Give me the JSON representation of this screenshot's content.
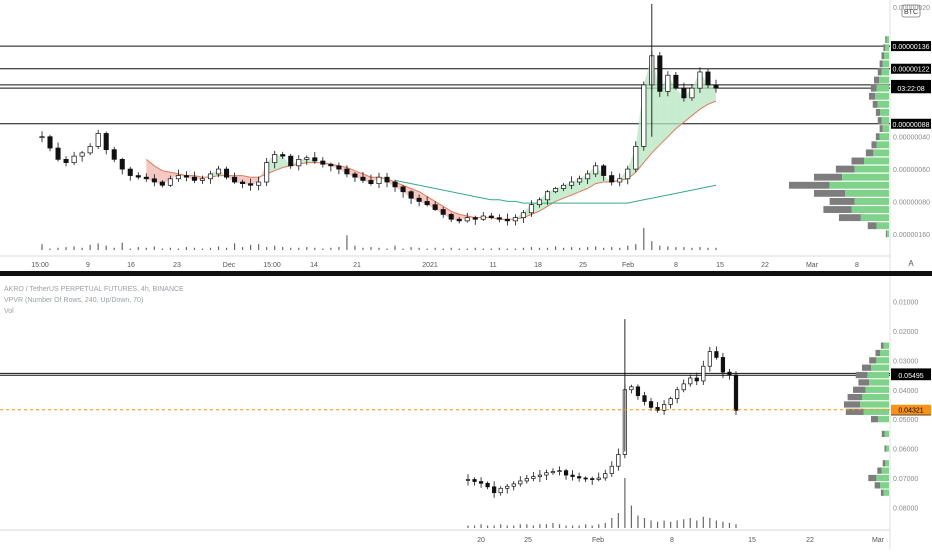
{
  "top_pane": {
    "currency_badge": "BTC",
    "price_levels": [
      "0.00000136",
      "0.00000122",
      "0.00000112",
      "0.00000110",
      "0.00000088"
    ],
    "countdown": "03:22:08",
    "y_ticks": [
      "0.00000160",
      "0.00000080",
      "0.00000060",
      "0.00000040",
      "0.00000020"
    ],
    "x_ticks": [
      "15:00",
      "9",
      "16",
      "23",
      "Dec",
      "15:00",
      "14",
      "21",
      "2021",
      "11",
      "18",
      "25",
      "Feb",
      "8",
      "15",
      "22",
      "Mar",
      "8"
    ],
    "scale_button": "A"
  },
  "bottom_pane": {
    "legend": {
      "symbol": "AKRO / TetherUS PERPETUAL FUTURES, 4h, BINANCE",
      "indicator": "VPVR (Number Of Rows, 240, Up/Down, 70)",
      "volume": "Vol"
    },
    "price_levels": [
      "0.05556",
      "0.05495"
    ],
    "countdown": "03:22:08",
    "last_price": "0.04321",
    "y_ticks": [
      "0.08000",
      "0.07000",
      "0.06000",
      "0.05000",
      "0.04000",
      "0.03000",
      "0.02000",
      "0.01000"
    ],
    "x_ticks": [
      "20",
      "25",
      "Feb",
      "8",
      "15",
      "22",
      "Mar"
    ]
  },
  "colors": {
    "up_volume": "#7fd28a",
    "down_volume": "#7d7d7d",
    "ma_fast": "#e07b5a",
    "ma_slow": "#3aa889",
    "fill_green": "#b6e6c0",
    "fill_red": "#f2b6b0",
    "last_price": "#f7931a",
    "candle": "#111111"
  },
  "chart_data": [
    {
      "type": "candlestick",
      "title": "",
      "currency": "BTC",
      "x_labels": [
        "15:00",
        "9",
        "16",
        "23",
        "Dec",
        "15:00",
        "14",
        "21",
        "2021",
        "11",
        "18",
        "25",
        "Feb",
        "8",
        "15",
        "22",
        "Mar",
        "8"
      ],
      "ylim": [
        1e-07,
        1.62e-06
      ],
      "y_ticks": [
        2e-07,
        4e-07,
        6e-07,
        8e-07,
        1.6e-06
      ],
      "close": [
        8e-07,
        7.3e-07,
        6.6e-07,
        6.4e-07,
        6.8e-07,
        7e-07,
        7.4e-07,
        8.2e-07,
        7.2e-07,
        6.6e-07,
        6e-07,
        5.6e-07,
        5.5e-07,
        5.4e-07,
        5.2e-07,
        5e-07,
        5.4e-07,
        5.6e-07,
        5.5e-07,
        5.3e-07,
        5.4e-07,
        5.7e-07,
        6e-07,
        5.5e-07,
        5.2e-07,
        5.1e-07,
        5e-07,
        5.2e-07,
        6.4e-07,
        6.9e-07,
        6.8e-07,
        6.2e-07,
        6.6e-07,
        6.7e-07,
        6.5e-07,
        6.3e-07,
        6.2e-07,
        6e-07,
        5.7e-07,
        5.5e-07,
        5.3e-07,
        5.1e-07,
        5.5e-07,
        5.2e-07,
        4.9e-07,
        4.6e-07,
        4.2e-07,
        4e-07,
        3.8e-07,
        3.5e-07,
        3.2e-07,
        2.9e-07,
        2.8e-07,
        3e-07,
        2.9e-07,
        3.1e-07,
        3e-07,
        2.9e-07,
        2.8e-07,
        3e-07,
        3.3e-07,
        3.8e-07,
        4.1e-07,
        4.6e-07,
        4.8e-07,
        5e-07,
        5.2e-07,
        5.4e-07,
        5.7e-07,
        6.2e-07,
        5.6e-07,
        5.2e-07,
        5.4e-07,
        6e-07,
        7.4e-07,
        1.12e-06,
        1.3e-06,
        1.08e-06,
        1.18e-06,
        1.1e-06,
        1.04e-06,
        1.1e-06,
        1.2e-06,
        1.12e-06,
        1.1e-06
      ],
      "ma_fast": [
        null,
        null,
        null,
        null,
        null,
        null,
        null,
        null,
        null,
        null,
        null,
        null,
        null,
        6.6e-07,
        6.2e-07,
        5.9e-07,
        5.8e-07,
        5.7e-07,
        5.6e-07,
        5.6e-07,
        5.5e-07,
        5.5e-07,
        5.6e-07,
        5.6e-07,
        5.6e-07,
        5.6e-07,
        5.5e-07,
        5.5e-07,
        5.7e-07,
        5.9e-07,
        6.1e-07,
        6.2e-07,
        6.3e-07,
        6.4e-07,
        6.4e-07,
        6.4e-07,
        6.3e-07,
        6.2e-07,
        6.1e-07,
        5.9e-07,
        5.7e-07,
        5.5e-07,
        5.5e-07,
        5.4e-07,
        5.2e-07,
        5e-07,
        4.8e-07,
        4.6e-07,
        4.3e-07,
        4e-07,
        3.7e-07,
        3.4e-07,
        3.2e-07,
        3.1e-07,
        3e-07,
        3e-07,
        3e-07,
        2.9e-07,
        2.9e-07,
        2.9e-07,
        3e-07,
        3.2e-07,
        3.4e-07,
        3.7e-07,
        4e-07,
        4.2e-07,
        4.4e-07,
        4.6e-07,
        4.8e-07,
        5.1e-07,
        5.2e-07,
        5.2e-07,
        5.3e-07,
        5.4e-07,
        5.8e-07,
        6.4e-07,
        7e-07,
        7.5e-07,
        8e-07,
        8.5e-07,
        8.9e-07,
        9.3e-07,
        9.7e-07,
        1e-06,
        1.02e-06
      ],
      "ma_slow": [
        null,
        null,
        null,
        null,
        null,
        null,
        null,
        null,
        null,
        null,
        null,
        null,
        null,
        null,
        null,
        null,
        null,
        null,
        null,
        null,
        null,
        null,
        null,
        null,
        null,
        null,
        null,
        null,
        null,
        null,
        null,
        null,
        null,
        null,
        null,
        null,
        null,
        null,
        null,
        null,
        null,
        null,
        null,
        null,
        5.3e-07,
        5.2e-07,
        5.1e-07,
        5e-07,
        4.9e-07,
        4.8e-07,
        4.7e-07,
        4.6e-07,
        4.5e-07,
        4.4e-07,
        4.3e-07,
        4.2e-07,
        4.1e-07,
        4.1e-07,
        4e-07,
        4e-07,
        3.9e-07,
        3.9e-07,
        3.9e-07,
        3.9e-07,
        3.9e-07,
        3.9e-07,
        3.9e-07,
        3.9e-07,
        3.9e-07,
        3.9e-07,
        3.9e-07,
        3.9e-07,
        3.9e-07,
        3.9e-07,
        4e-07,
        4.1e-07,
        4.2e-07,
        4.3e-07,
        4.4e-07,
        4.5e-07,
        4.6e-07,
        4.7e-07,
        4.8e-07,
        4.9e-07,
        5e-07
      ],
      "volume": [
        8,
        2,
        3,
        4,
        5,
        3,
        7,
        9,
        6,
        3,
        10,
        2,
        4,
        3,
        5,
        2,
        3,
        2,
        4,
        3,
        2,
        3,
        5,
        3,
        9,
        4,
        7,
        8,
        4,
        6,
        4,
        3,
        3,
        4,
        3,
        2,
        3,
        4,
        20,
        6,
        3,
        4,
        3,
        2,
        6,
        2,
        4,
        3,
        2,
        3,
        2,
        3,
        2,
        2,
        3,
        2,
        2,
        3,
        2,
        2,
        3,
        4,
        3,
        3,
        5,
        3,
        4,
        3,
        4,
        5,
        3,
        4,
        3,
        6,
        8,
        30,
        12,
        6,
        5,
        4,
        4,
        3,
        4,
        3,
        3
      ],
      "horizontal_levels": [
        1.36e-06,
        1.22e-06,
        1.12e-06,
        1.1e-06,
        8.8e-07
      ],
      "volume_profile": {
        "prices": [
          2e-07,
          2.5e-07,
          3e-07,
          3.5e-07,
          4e-07,
          4.5e-07,
          5e-07,
          5.5e-07,
          6e-07,
          6.5e-07,
          7e-07,
          7.5e-07,
          8e-07,
          8.5e-07,
          9e-07,
          9.5e-07,
          1e-06,
          1.05e-06,
          1.1e-06,
          1.15e-06,
          1.2e-06,
          1.25e-06,
          1.3e-06,
          1.35e-06,
          1.4e-06
        ],
        "up": [
          3,
          20,
          45,
          60,
          55,
          70,
          95,
          75,
          55,
          40,
          25,
          20,
          15,
          10,
          12,
          14,
          18,
          22,
          20,
          16,
          12,
          10,
          8,
          6,
          4
        ],
        "down": [
          2,
          14,
          35,
          45,
          40,
          50,
          65,
          45,
          30,
          20,
          12,
          8,
          6,
          5,
          6,
          7,
          8,
          10,
          9,
          8,
          6,
          5,
          4,
          3,
          2
        ]
      }
    },
    {
      "type": "candlestick",
      "title": "AKRO / TetherUS PERPETUAL FUTURES, 4h, BINANCE",
      "x_labels": [
        "20",
        "25",
        "Feb",
        "8",
        "15",
        "22",
        "Mar"
      ],
      "ylim": [
        0.003,
        0.088
      ],
      "y_ticks": [
        0.01,
        0.02,
        0.03,
        0.04,
        0.05,
        0.06,
        0.07,
        0.08
      ],
      "close": [
        0.0195,
        0.0188,
        0.0182,
        0.017,
        0.015,
        0.0165,
        0.0172,
        0.018,
        0.019,
        0.0198,
        0.0205,
        0.021,
        0.0218,
        0.0222,
        0.0225,
        0.021,
        0.0205,
        0.02,
        0.0198,
        0.0195,
        0.02,
        0.0215,
        0.024,
        0.028,
        0.05,
        0.051,
        0.048,
        0.046,
        0.044,
        0.043,
        0.045,
        0.047,
        0.05,
        0.052,
        0.054,
        0.053,
        0.058,
        0.063,
        0.061,
        0.056,
        0.055,
        0.043
      ],
      "volume": [
        2,
        2,
        3,
        2,
        2,
        3,
        2,
        2,
        3,
        3,
        2,
        3,
        3,
        4,
        3,
        2,
        2,
        2,
        3,
        2,
        3,
        4,
        8,
        12,
        40,
        18,
        10,
        8,
        6,
        5,
        6,
        5,
        6,
        7,
        8,
        6,
        9,
        8,
        6,
        5,
        4,
        3
      ],
      "horizontal_levels": [
        0.05556,
        0.05495
      ],
      "last_price": 0.04321,
      "volume_profile": {
        "prices": [
          0.015,
          0.0175,
          0.02,
          0.0225,
          0.025,
          0.03,
          0.035,
          0.04,
          0.0425,
          0.045,
          0.0475,
          0.05,
          0.0525,
          0.055,
          0.0575,
          0.06,
          0.0625,
          0.065
        ],
        "up": [
          6,
          10,
          14,
          8,
          4,
          3,
          5,
          12,
          28,
          32,
          30,
          26,
          22,
          24,
          20,
          14,
          10,
          6
        ],
        "down": [
          3,
          6,
          9,
          5,
          3,
          2,
          3,
          8,
          20,
          18,
          16,
          14,
          12,
          13,
          10,
          8,
          5,
          3
        ]
      }
    }
  ]
}
